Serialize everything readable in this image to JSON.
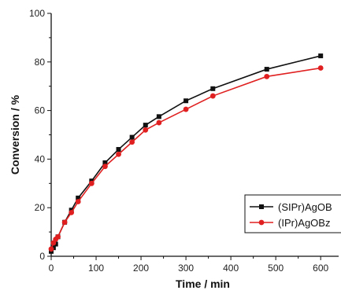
{
  "chart_data": {
    "type": "line",
    "xlabel": "Time / min",
    "ylabel": "Conversion / %",
    "xlim": [
      0,
      640
    ],
    "ylim": [
      0,
      100
    ],
    "xticks": [
      0,
      100,
      200,
      300,
      400,
      500,
      600
    ],
    "yticks": [
      0,
      20,
      40,
      60,
      80,
      100
    ],
    "legend_position": "right",
    "series": [
      {
        "name": "(SIPr)AgOB",
        "color": "#111111",
        "marker": "square",
        "x": [
          0,
          5,
          10,
          15,
          30,
          45,
          60,
          90,
          120,
          150,
          180,
          210,
          240,
          300,
          360,
          480,
          600
        ],
        "y": [
          2,
          3.5,
          5,
          8,
          14,
          19,
          24,
          31,
          38.5,
          44,
          49,
          54,
          57.5,
          64,
          69,
          77,
          82.5
        ]
      },
      {
        "name": "(IPr)AgOBz",
        "color": "#e02020",
        "marker": "circle",
        "x": [
          0,
          5,
          10,
          15,
          30,
          45,
          60,
          90,
          120,
          150,
          180,
          210,
          240,
          300,
          360,
          480,
          600
        ],
        "y": [
          3,
          5.5,
          7,
          8,
          14,
          18,
          22.5,
          30,
          37,
          42,
          47,
          52,
          55,
          60.5,
          66,
          74,
          77.5
        ]
      }
    ]
  }
}
